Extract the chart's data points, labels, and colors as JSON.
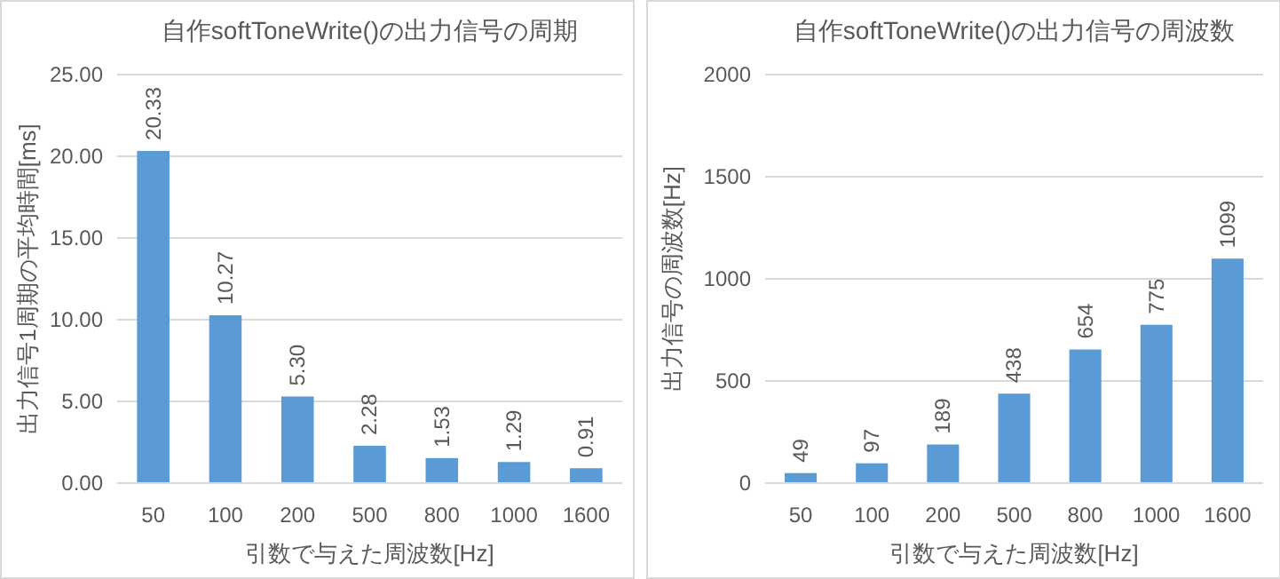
{
  "chart_data": [
    {
      "type": "bar",
      "title": "自作softToneWrite()の出力信号の周期",
      "xlabel": "引数で与えた周波数[Hz]",
      "ylabel": "出力信号1周期の平均時間[ms]",
      "categories": [
        "50",
        "100",
        "200",
        "500",
        "800",
        "1000",
        "1600"
      ],
      "values": [
        20.33,
        10.27,
        5.3,
        2.28,
        1.53,
        1.29,
        0.91
      ],
      "value_labels": [
        "20.33",
        "10.27",
        "5.30",
        "2.28",
        "1.53",
        "1.29",
        "0.91"
      ],
      "color": "#5b9bd5",
      "ylim": [
        0,
        25
      ],
      "yticks": [
        {
          "value": 0,
          "label": "0.00"
        },
        {
          "value": 5,
          "label": "5.00"
        },
        {
          "value": 10,
          "label": "10.00"
        },
        {
          "value": 15,
          "label": "15.00"
        },
        {
          "value": 20,
          "label": "20.00"
        },
        {
          "value": 25,
          "label": "25.00"
        }
      ],
      "grid": "y"
    },
    {
      "type": "bar",
      "title": "自作softToneWrite()の出力信号の周波数",
      "xlabel": "引数で与えた周波数[Hz]",
      "ylabel": "出力信号の周波数[Hz]",
      "categories": [
        "50",
        "100",
        "200",
        "500",
        "800",
        "1000",
        "1600"
      ],
      "values": [
        49,
        97,
        189,
        438,
        654,
        775,
        1099
      ],
      "data_labels": true,
      "color": "#5b9bd5",
      "ylim": [
        0,
        2000
      ],
      "yticks": [
        0,
        500,
        1000,
        1500,
        2000
      ],
      "grid": "y"
    }
  ]
}
